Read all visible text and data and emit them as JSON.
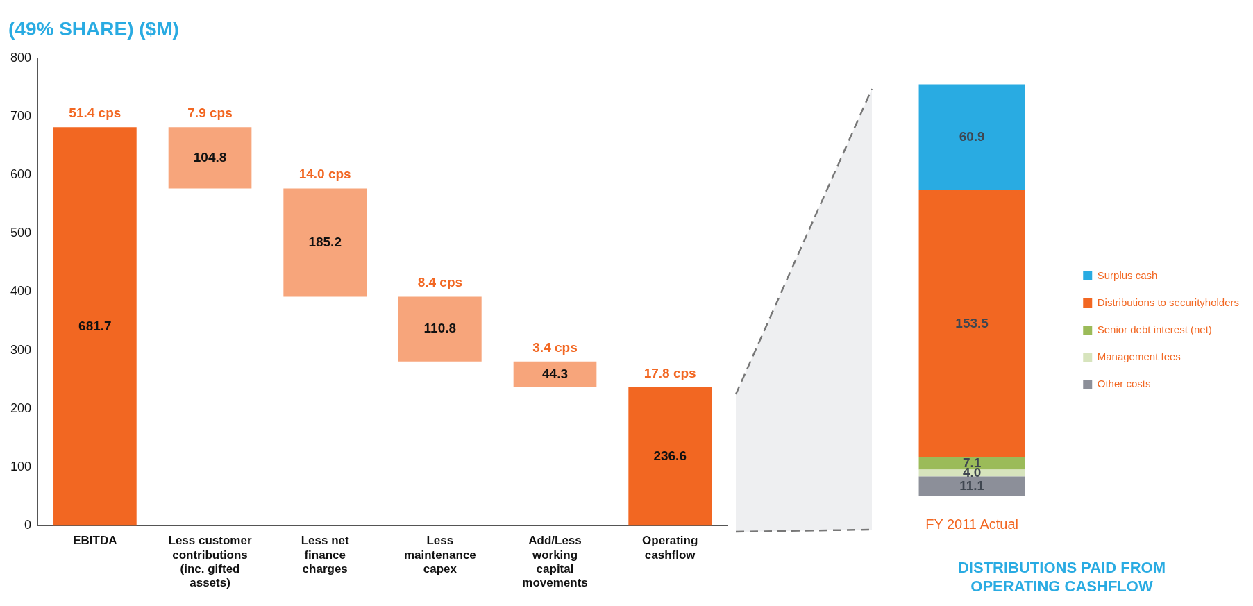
{
  "chart_data": [
    {
      "type": "bar",
      "title": "(49% SHARE) ($M)",
      "categories": [
        "EBITDA",
        "Less customer contributions (inc. gifted assets)",
        "Less net finance charges",
        "Less maintenance capex",
        "Add/Less working capital movements",
        "Operating cashflow"
      ],
      "values": [
        681.7,
        104.8,
        185.2,
        110.8,
        44.3,
        236.6
      ],
      "base": [
        0,
        576.9,
        391.7,
        280.9,
        236.6,
        0
      ],
      "colors": [
        "#f26722",
        "#f7a57b",
        "#f7a57b",
        "#f7a57b",
        "#f7a57b",
        "#f26722"
      ],
      "data_labels": true,
      "annotations": [
        {
          "text": "51.4 cps",
          "x": "EBITDA",
          "y": 681.7
        },
        {
          "text": "7.9 cps",
          "x": "Less customer contributions (inc. gifted assets)",
          "y": 681.7
        },
        {
          "text": "14.0 cps",
          "x": "Less net finance charges",
          "y": 576.9
        },
        {
          "text": "8.4 cps",
          "x": "Less maintenance capex",
          "y": 391.7
        },
        {
          "text": "3.4 cps",
          "x": "Add/Less working capital movements",
          "y": 280.9
        },
        {
          "text": "17.8 cps",
          "x": "Operating cashflow",
          "y": 236.6
        }
      ],
      "ylim": [
        0,
        800
      ],
      "yticks": [
        0,
        100,
        200,
        300,
        400,
        500,
        600,
        700,
        800
      ],
      "grid": false,
      "legend": false
    },
    {
      "type": "bar",
      "stacked": true,
      "title": "DISTRIBUTIONS PAID FROM OPERATING CASHFLOW",
      "categories": [
        "FY 2011 Actual"
      ],
      "series": [
        {
          "name": "Other costs",
          "color": "#8c8f99",
          "values": [
            11.1
          ],
          "value_labels": [
            "11.1"
          ]
        },
        {
          "name": "Management fees",
          "color": "#d7e4bd",
          "values": [
            4.0
          ],
          "value_labels": [
            "4.0"
          ]
        },
        {
          "name": "Senior debt interest (net)",
          "color": "#9bbb59",
          "values": [
            7.1
          ],
          "value_labels": [
            "7.1"
          ]
        },
        {
          "name": "Distributions to securityholders",
          "color": "#f26722",
          "values": [
            153.5
          ],
          "value_labels": [
            "153.5"
          ]
        },
        {
          "name": "Surplus cash",
          "color": "#29abe2",
          "values": [
            60.9
          ],
          "value_labels": [
            "60.9"
          ]
        }
      ],
      "data_labels": true,
      "grid": false,
      "legend": "right"
    }
  ]
}
